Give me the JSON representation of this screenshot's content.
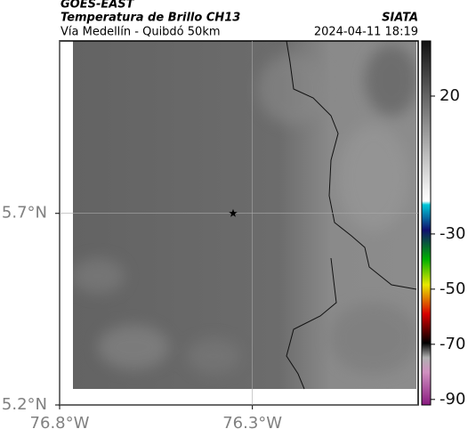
{
  "chart_data": {
    "type": "map",
    "title": "GOES-EAST",
    "subtitle": "Temperatura de Brillo CH13",
    "region": "Vía Medellín - Quibdó 50km",
    "source": "SIATA",
    "timestamp": "2024-04-11 18:19",
    "xlim": [
      -76.8,
      -75.87
    ],
    "ylim": [
      5.2,
      6.15
    ],
    "xticks": [
      {
        "value": -76.8,
        "label": "76.8°W"
      },
      {
        "value": -76.3,
        "label": "76.3°W"
      }
    ],
    "yticks": [
      {
        "value": 5.2,
        "label": "5.2°N"
      },
      {
        "value": 5.7,
        "label": "5.7°N"
      }
    ],
    "grid": true,
    "marker": {
      "x": -76.35,
      "y": 5.7
    },
    "clim": [
      -92,
      40
    ],
    "cticks": [
      20,
      -30,
      -50,
      -70,
      -90
    ]
  }
}
